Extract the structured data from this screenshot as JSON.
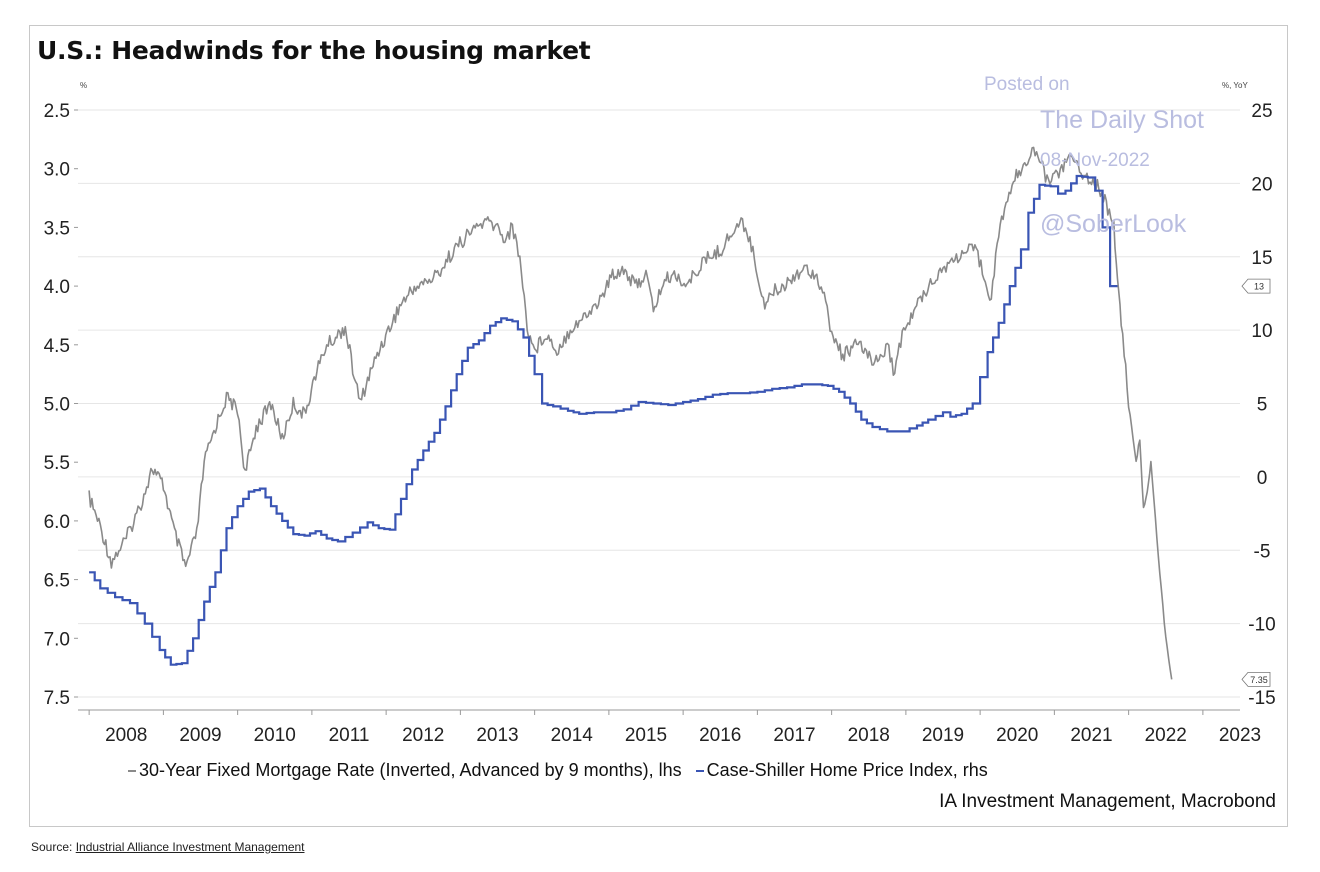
{
  "chart_data": {
    "type": "line",
    "title": "U.S.: Headwinds for the housing market",
    "left_unit": "%",
    "right_unit": "%, YoY",
    "left_axis": {
      "ylim": [
        2.5,
        7.5
      ],
      "inverted": true,
      "ticks": [
        "2.5",
        "3.0",
        "3.5",
        "4.0",
        "4.5",
        "5.0",
        "5.5",
        "6.0",
        "6.5",
        "7.0",
        "7.5"
      ]
    },
    "right_axis": {
      "ylim": [
        -15,
        25
      ],
      "ticks": [
        "25",
        "20",
        "15",
        "10",
        "5",
        "0",
        "-5",
        "-10",
        "-15"
      ]
    },
    "x_ticks": [
      "2008",
      "2009",
      "2010",
      "2011",
      "2012",
      "2013",
      "2014",
      "2015",
      "2016",
      "2017",
      "2018",
      "2019",
      "2020",
      "2021",
      "2022",
      "2023"
    ],
    "grid": "horizontal",
    "series": [
      {
        "name": "30-Year Fixed Mortgage Rate (Inverted, Advanced by 9 months), lhs",
        "axis": "left",
        "color": "#8a8a8a",
        "points": [
          [
            2008.0,
            5.8
          ],
          [
            2008.15,
            6.05
          ],
          [
            2008.3,
            6.35
          ],
          [
            2008.5,
            6.15
          ],
          [
            2008.7,
            5.85
          ],
          [
            2008.85,
            5.55
          ],
          [
            2009.0,
            5.7
          ],
          [
            2009.15,
            6.1
          ],
          [
            2009.3,
            6.4
          ],
          [
            2009.45,
            6.1
          ],
          [
            2009.55,
            5.5
          ],
          [
            2009.7,
            5.2
          ],
          [
            2009.85,
            4.95
          ],
          [
            2010.0,
            5.05
          ],
          [
            2010.1,
            5.6
          ],
          [
            2010.25,
            5.2
          ],
          [
            2010.45,
            5.0
          ],
          [
            2010.6,
            5.3
          ],
          [
            2010.75,
            5.0
          ],
          [
            2010.9,
            5.1
          ],
          [
            2011.05,
            4.75
          ],
          [
            2011.2,
            4.5
          ],
          [
            2011.3,
            4.45
          ],
          [
            2011.45,
            4.35
          ],
          [
            2011.55,
            4.7
          ],
          [
            2011.65,
            5.0
          ],
          [
            2011.75,
            4.8
          ],
          [
            2011.9,
            4.55
          ],
          [
            2012.05,
            4.35
          ],
          [
            2012.2,
            4.15
          ],
          [
            2012.4,
            4.0
          ],
          [
            2012.6,
            3.95
          ],
          [
            2012.75,
            3.85
          ],
          [
            2012.9,
            3.7
          ],
          [
            2013.05,
            3.6
          ],
          [
            2013.2,
            3.5
          ],
          [
            2013.35,
            3.45
          ],
          [
            2013.5,
            3.5
          ],
          [
            2013.6,
            3.6
          ],
          [
            2013.7,
            3.5
          ],
          [
            2013.8,
            3.75
          ],
          [
            2013.9,
            4.35
          ],
          [
            2014.0,
            4.55
          ],
          [
            2014.15,
            4.4
          ],
          [
            2014.3,
            4.55
          ],
          [
            2014.5,
            4.35
          ],
          [
            2014.7,
            4.25
          ],
          [
            2014.9,
            4.1
          ],
          [
            2015.05,
            3.9
          ],
          [
            2015.2,
            3.85
          ],
          [
            2015.35,
            4.0
          ],
          [
            2015.5,
            3.9
          ],
          [
            2015.6,
            4.2
          ],
          [
            2015.75,
            3.95
          ],
          [
            2015.9,
            3.9
          ],
          [
            2016.05,
            4.0
          ],
          [
            2016.2,
            3.85
          ],
          [
            2016.35,
            3.75
          ],
          [
            2016.5,
            3.7
          ],
          [
            2016.65,
            3.55
          ],
          [
            2016.8,
            3.45
          ],
          [
            2016.9,
            3.6
          ],
          [
            2017.0,
            3.9
          ],
          [
            2017.1,
            4.15
          ],
          [
            2017.2,
            4.05
          ],
          [
            2017.35,
            4.0
          ],
          [
            2017.5,
            3.9
          ],
          [
            2017.65,
            3.85
          ],
          [
            2017.8,
            3.9
          ],
          [
            2017.9,
            4.1
          ],
          [
            2018.0,
            4.4
          ],
          [
            2018.15,
            4.6
          ],
          [
            2018.3,
            4.5
          ],
          [
            2018.45,
            4.55
          ],
          [
            2018.6,
            4.65
          ],
          [
            2018.75,
            4.5
          ],
          [
            2018.85,
            4.75
          ],
          [
            2018.95,
            4.4
          ],
          [
            2019.05,
            4.3
          ],
          [
            2019.2,
            4.1
          ],
          [
            2019.35,
            3.95
          ],
          [
            2019.5,
            3.85
          ],
          [
            2019.7,
            3.75
          ],
          [
            2019.85,
            3.7
          ],
          [
            2019.95,
            3.7
          ],
          [
            2020.05,
            3.9
          ],
          [
            2020.15,
            4.1
          ],
          [
            2020.25,
            3.55
          ],
          [
            2020.35,
            3.3
          ],
          [
            2020.45,
            3.1
          ],
          [
            2020.6,
            2.95
          ],
          [
            2020.7,
            2.85
          ],
          [
            2020.8,
            2.9
          ],
          [
            2020.9,
            3.1
          ],
          [
            2021.0,
            3.05
          ],
          [
            2021.1,
            3.0
          ],
          [
            2021.2,
            2.9
          ],
          [
            2021.3,
            2.95
          ],
          [
            2021.4,
            3.05
          ],
          [
            2021.5,
            3.1
          ],
          [
            2021.6,
            3.15
          ],
          [
            2021.7,
            3.3
          ],
          [
            2021.8,
            3.5
          ],
          [
            2021.85,
            3.9
          ],
          [
            2021.9,
            4.3
          ],
          [
            2022.0,
            5.0
          ],
          [
            2022.1,
            5.5
          ],
          [
            2022.15,
            5.3
          ],
          [
            2022.2,
            5.9
          ],
          [
            2022.25,
            5.75
          ],
          [
            2022.3,
            5.5
          ],
          [
            2022.4,
            6.3
          ],
          [
            2022.5,
            7.0
          ],
          [
            2022.58,
            7.35
          ]
        ]
      },
      {
        "name": "Case-Shiller Home Price Index, rhs",
        "axis": "right",
        "color": "#3a55b4",
        "points": [
          [
            2008.0,
            -6.5
          ],
          [
            2008.15,
            -7.6
          ],
          [
            2008.35,
            -8.2
          ],
          [
            2008.55,
            -8.6
          ],
          [
            2008.75,
            -10.0
          ],
          [
            2008.95,
            -11.8
          ],
          [
            2009.1,
            -12.8
          ],
          [
            2009.25,
            -12.7
          ],
          [
            2009.4,
            -11.0
          ],
          [
            2009.55,
            -8.5
          ],
          [
            2009.7,
            -6.5
          ],
          [
            2009.85,
            -3.5
          ],
          [
            2010.0,
            -2.0
          ],
          [
            2010.15,
            -1.0
          ],
          [
            2010.3,
            -0.8
          ],
          [
            2010.45,
            -2.0
          ],
          [
            2010.6,
            -3.0
          ],
          [
            2010.75,
            -3.9
          ],
          [
            2010.9,
            -4.0
          ],
          [
            2011.05,
            -3.7
          ],
          [
            2011.2,
            -4.2
          ],
          [
            2011.35,
            -4.4
          ],
          [
            2011.55,
            -3.8
          ],
          [
            2011.75,
            -3.1
          ],
          [
            2011.9,
            -3.5
          ],
          [
            2012.05,
            -3.6
          ],
          [
            2012.2,
            -1.5
          ],
          [
            2012.35,
            0.5
          ],
          [
            2012.5,
            1.8
          ],
          [
            2012.65,
            3.0
          ],
          [
            2012.8,
            4.8
          ],
          [
            2012.95,
            7.0
          ],
          [
            2013.1,
            8.8
          ],
          [
            2013.25,
            9.3
          ],
          [
            2013.4,
            10.3
          ],
          [
            2013.55,
            10.8
          ],
          [
            2013.7,
            10.6
          ],
          [
            2013.85,
            9.5
          ],
          [
            2014.0,
            7.0
          ],
          [
            2014.1,
            5.0
          ],
          [
            2014.25,
            4.8
          ],
          [
            2014.45,
            4.5
          ],
          [
            2014.6,
            4.3
          ],
          [
            2014.8,
            4.4
          ],
          [
            2015.0,
            4.4
          ],
          [
            2015.2,
            4.6
          ],
          [
            2015.4,
            5.1
          ],
          [
            2015.6,
            5.0
          ],
          [
            2015.8,
            4.9
          ],
          [
            2016.0,
            5.1
          ],
          [
            2016.2,
            5.3
          ],
          [
            2016.4,
            5.6
          ],
          [
            2016.6,
            5.7
          ],
          [
            2016.8,
            5.7
          ],
          [
            2017.0,
            5.8
          ],
          [
            2017.2,
            6.0
          ],
          [
            2017.4,
            6.1
          ],
          [
            2017.6,
            6.3
          ],
          [
            2017.8,
            6.3
          ],
          [
            2017.95,
            6.2
          ],
          [
            2018.1,
            5.8
          ],
          [
            2018.25,
            5.0
          ],
          [
            2018.4,
            3.9
          ],
          [
            2018.55,
            3.4
          ],
          [
            2018.75,
            3.1
          ],
          [
            2018.95,
            3.1
          ],
          [
            2019.15,
            3.5
          ],
          [
            2019.3,
            3.9
          ],
          [
            2019.5,
            4.4
          ],
          [
            2019.6,
            4.1
          ],
          [
            2019.75,
            4.3
          ],
          [
            2019.9,
            5.0
          ],
          [
            2020.0,
            6.8
          ],
          [
            2020.1,
            8.5
          ],
          [
            2020.25,
            10.5
          ],
          [
            2020.4,
            13.0
          ],
          [
            2020.55,
            15.5
          ],
          [
            2020.65,
            18.0
          ],
          [
            2020.8,
            19.9
          ],
          [
            2020.95,
            19.8
          ],
          [
            2021.05,
            19.3
          ],
          [
            2021.15,
            19.5
          ],
          [
            2021.3,
            20.5
          ],
          [
            2021.45,
            20.4
          ],
          [
            2021.55,
            19.5
          ],
          [
            2021.65,
            17.0
          ],
          [
            2021.75,
            13.0
          ],
          [
            2021.85,
            13.0
          ]
        ]
      }
    ],
    "annotations": [
      {
        "text": "13",
        "axis": "right",
        "y": 13
      },
      {
        "text": "7.35",
        "axis": "left",
        "y": 7.35
      }
    ]
  },
  "legend": {
    "entries": [
      {
        "label": "30-Year Fixed Mortgage Rate (Inverted, Advanced by 9 months), lhs",
        "color": "#8a8a8a"
      },
      {
        "label": "Case-Shiller Home Price Index, rhs",
        "color": "#3a55b4"
      }
    ]
  },
  "credit": "IA Investment Management, Macrobond",
  "watermark": {
    "line1": "Posted on",
    "line2": "The Daily Shot",
    "line3": "08-Nov-2022",
    "line4": "@SoberLook"
  },
  "source": {
    "prefix": "Source: ",
    "link": "Industrial Alliance Investment Management"
  }
}
